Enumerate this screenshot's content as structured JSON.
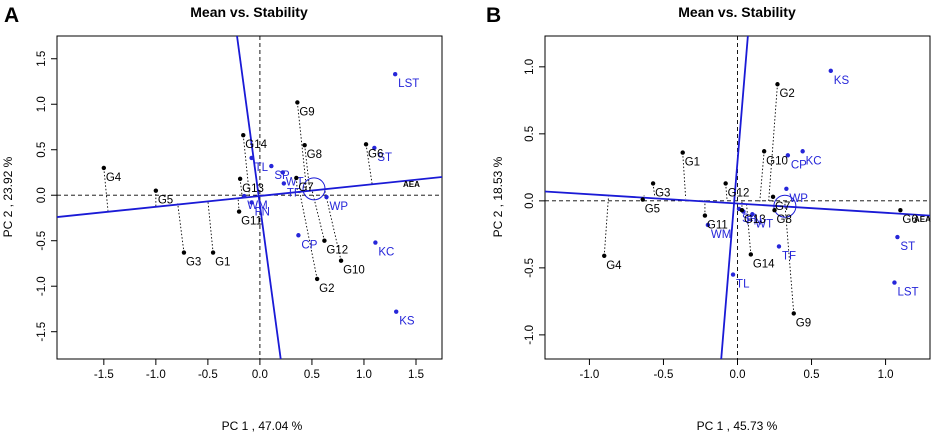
{
  "chart_data": [
    {
      "type": "scatter",
      "panel": "A",
      "title": "Mean vs. Stability",
      "xlabel": "PC 1 , 47.04 %",
      "ylabel": "PC 2 , 23.92 %",
      "xlim": [
        -1.95,
        1.75
      ],
      "ylim": [
        -1.8,
        1.75
      ],
      "xticks": [
        -1.5,
        -1.0,
        -0.5,
        0.0,
        0.5,
        1.0,
        1.5
      ],
      "xtick_labels": [
        "-1.5",
        "-1.0",
        "-0.5",
        "0.0",
        "0.5",
        "1.0",
        "1.5"
      ],
      "yticks": [
        -1.5,
        -1.0,
        -0.5,
        0.0,
        0.5,
        1.0,
        1.5
      ],
      "ytick_labels": [
        "-1.5",
        "-1.0",
        "-0.5",
        "0.0",
        "0.5",
        "1.0",
        "1.5"
      ],
      "aea_label": "AEA",
      "aea_line": [
        [
          -1.95,
          -0.24
        ],
        [
          1.75,
          0.2
        ]
      ],
      "ata_line": [
        [
          -0.22,
          1.75
        ],
        [
          0.2,
          -1.8
        ]
      ],
      "circle": {
        "x": 0.52,
        "y": 0.07
      },
      "genotypes_color": "#000000",
      "environments_color": "#2626d9",
      "genotypes": [
        {
          "name": "G1",
          "x": -0.45,
          "y": -0.63,
          "proj": [
            -0.5,
            -0.06
          ]
        },
        {
          "name": "G2",
          "x": 0.55,
          "y": -0.92,
          "proj": [
            0.38,
            0.05
          ]
        },
        {
          "name": "G3",
          "x": -0.73,
          "y": -0.63,
          "proj": [
            -0.79,
            -0.09
          ]
        },
        {
          "name": "G4",
          "x": -1.5,
          "y": 0.3,
          "proj": [
            -1.46,
            -0.17
          ]
        },
        {
          "name": "G5",
          "x": -1.0,
          "y": 0.05,
          "proj": [
            -1.0,
            -0.12
          ]
        },
        {
          "name": "G6",
          "x": 1.02,
          "y": 0.56,
          "proj": [
            1.08,
            0.11
          ]
        },
        {
          "name": "G7",
          "x": 0.35,
          "y": 0.19,
          "proj": [
            0.36,
            0.04
          ]
        },
        {
          "name": "G8",
          "x": 0.43,
          "y": 0.55,
          "proj": [
            0.48,
            0.05
          ]
        },
        {
          "name": "G9",
          "x": 0.36,
          "y": 1.02,
          "proj": [
            0.45,
            0.05
          ]
        },
        {
          "name": "G10",
          "x": 0.78,
          "y": -0.72,
          "proj": [
            0.62,
            0.07
          ]
        },
        {
          "name": "G11",
          "x": -0.2,
          "y": -0.18,
          "proj": [
            -0.21,
            -0.03
          ]
        },
        {
          "name": "G12",
          "x": 0.62,
          "y": -0.5,
          "proj": [
            0.5,
            0.06
          ]
        },
        {
          "name": "G13",
          "x": -0.19,
          "y": 0.18,
          "proj": [
            -0.17,
            -0.02
          ]
        },
        {
          "name": "G14",
          "x": -0.16,
          "y": 0.66,
          "proj": [
            -0.1,
            -0.01
          ]
        }
      ],
      "environments": [
        {
          "name": "LST",
          "x": 1.3,
          "y": 1.33
        },
        {
          "name": "ST",
          "x": 1.1,
          "y": 0.52
        },
        {
          "name": "SP",
          "x": 0.11,
          "y": 0.32
        },
        {
          "name": "TL",
          "x": -0.08,
          "y": 0.41
        },
        {
          "name": "WT",
          "x": 0.22,
          "y": 0.25
        },
        {
          "name": "TF",
          "x": 0.23,
          "y": 0.13
        },
        {
          "name": "WP",
          "x": 0.64,
          "y": -0.02
        },
        {
          "name": "WM",
          "x": -0.15,
          "y": -0.01
        },
        {
          "name": "FN",
          "x": -0.08,
          "y": -0.08
        },
        {
          "name": "CP",
          "x": 0.37,
          "y": -0.44
        },
        {
          "name": "KC",
          "x": 1.11,
          "y": -0.52
        },
        {
          "name": "KS",
          "x": 1.31,
          "y": -1.28
        }
      ]
    },
    {
      "type": "scatter",
      "panel": "B",
      "title": "Mean vs. Stability",
      "xlabel": "PC 1 , 45.73 %",
      "ylabel": "PC 2 , 18.53 %",
      "xlim": [
        -1.3,
        1.3
      ],
      "ylim": [
        -1.18,
        1.23
      ],
      "xticks": [
        -1.0,
        -0.5,
        0.0,
        0.5,
        1.0
      ],
      "xtick_labels": [
        "-1.0",
        "-0.5",
        "0.0",
        "0.5",
        "1.0"
      ],
      "yticks": [
        -1.0,
        -0.5,
        0.0,
        0.5,
        1.0
      ],
      "ytick_labels": [
        "-1.0",
        "-0.5",
        "0.0",
        "0.5",
        "1.0"
      ],
      "aea_label": "AEA",
      "aea_line": [
        [
          -1.3,
          0.07
        ],
        [
          1.3,
          -0.11
        ]
      ],
      "ata_line": [
        [
          0.07,
          1.23
        ],
        [
          -0.11,
          -1.18
        ]
      ],
      "circle": {
        "x": 0.32,
        "y": -0.04
      },
      "genotypes_color": "#000000",
      "environments_color": "#2626d9",
      "genotypes": [
        {
          "name": "G1",
          "x": -0.37,
          "y": 0.36,
          "proj": [
            -0.35,
            0.02
          ]
        },
        {
          "name": "G2",
          "x": 0.27,
          "y": 0.87,
          "proj": [
            0.21,
            -0.01
          ]
        },
        {
          "name": "G3",
          "x": -0.57,
          "y": 0.13,
          "proj": [
            -0.56,
            0.04
          ]
        },
        {
          "name": "G4",
          "x": -0.9,
          "y": -0.41,
          "proj": [
            -0.87,
            0.05
          ]
        },
        {
          "name": "G5",
          "x": -0.64,
          "y": 0.01,
          "proj": [
            -0.63,
            0.04
          ]
        },
        {
          "name": "G6",
          "x": 1.1,
          "y": -0.07,
          "proj": [
            1.1,
            -0.08
          ]
        },
        {
          "name": "G7",
          "x": 0.24,
          "y": 0.03,
          "proj": [
            0.24,
            -0.02
          ]
        },
        {
          "name": "G8",
          "x": 0.25,
          "y": -0.07,
          "proj": [
            0.25,
            -0.02
          ]
        },
        {
          "name": "G9",
          "x": 0.38,
          "y": -0.84,
          "proj": [
            0.32,
            -0.02
          ]
        },
        {
          "name": "G10",
          "x": 0.18,
          "y": 0.37,
          "proj": [
            0.15,
            -0.01
          ]
        },
        {
          "name": "G11",
          "x": -0.22,
          "y": -0.11,
          "proj": [
            -0.22,
            0.01
          ]
        },
        {
          "name": "G12",
          "x": -0.08,
          "y": 0.13,
          "proj": [
            -0.07,
            0.0
          ]
        },
        {
          "name": "G13",
          "x": 0.03,
          "y": -0.07,
          "proj": [
            0.03,
            0.0
          ]
        },
        {
          "name": "G14",
          "x": 0.09,
          "y": -0.4,
          "proj": [
            0.06,
            -0.01
          ]
        }
      ],
      "environments": [
        {
          "name": "KS",
          "x": 0.63,
          "y": 0.97
        },
        {
          "name": "CP",
          "x": 0.34,
          "y": 0.34
        },
        {
          "name": "KC",
          "x": 0.44,
          "y": 0.37
        },
        {
          "name": "WP",
          "x": 0.33,
          "y": 0.09
        },
        {
          "name": "SP",
          "x": 0.01,
          "y": -0.06
        },
        {
          "name": "FN",
          "x": 0.04,
          "y": -0.08
        },
        {
          "name": "WT",
          "x": 0.1,
          "y": -0.1
        },
        {
          "name": "WM",
          "x": -0.2,
          "y": -0.18
        },
        {
          "name": "TF",
          "x": 0.28,
          "y": -0.34
        },
        {
          "name": "TL",
          "x": -0.03,
          "y": -0.55
        },
        {
          "name": "ST",
          "x": 1.08,
          "y": -0.27
        },
        {
          "name": "LST",
          "x": 1.06,
          "y": -0.61
        }
      ]
    }
  ]
}
